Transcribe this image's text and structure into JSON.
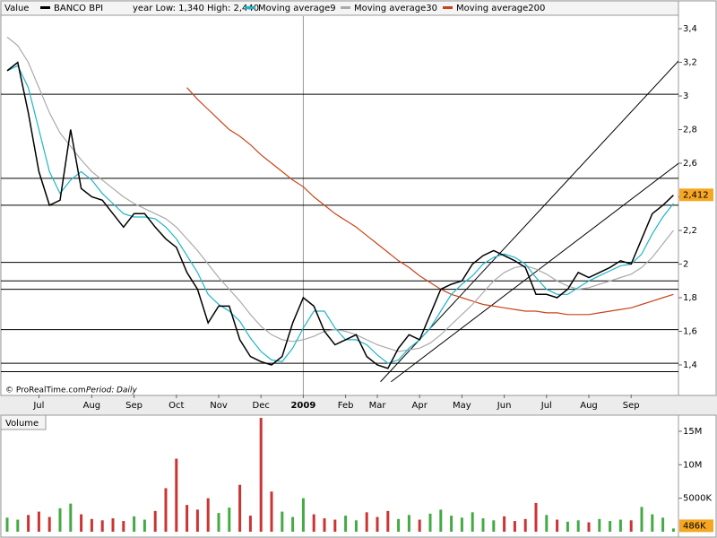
{
  "chart_data": {
    "type": "line",
    "y_label": "Value",
    "subtitle": "year Low: 1,340 High: 2,440",
    "credit": "© ProRealTime.com",
    "period_label": "Period:",
    "period": "Daily",
    "categories": [
      null,
      null,
      null,
      "Jul",
      null,
      null,
      null,
      null,
      "Aug",
      null,
      null,
      null,
      "Sep",
      null,
      null,
      null,
      "Oct",
      null,
      null,
      null,
      "Nov",
      null,
      null,
      null,
      "Dec",
      null,
      null,
      null,
      "2009",
      null,
      null,
      null,
      "Feb",
      null,
      null,
      "Mar",
      null,
      null,
      null,
      "Apr",
      null,
      null,
      null,
      "May",
      null,
      null,
      null,
      "Jun",
      null,
      null,
      null,
      "Jul",
      null,
      null,
      null,
      "Aug",
      null,
      null,
      null,
      "Sep",
      null,
      null,
      null,
      null
    ],
    "series": [
      {
        "name": "BANCO BPI",
        "color": "#000000",
        "values": [
          3.15,
          3.2,
          2.9,
          2.55,
          2.35,
          2.38,
          2.8,
          2.45,
          2.4,
          2.38,
          2.3,
          2.22,
          2.3,
          2.3,
          2.22,
          2.15,
          2.1,
          1.95,
          1.85,
          1.65,
          1.75,
          1.75,
          1.55,
          1.45,
          1.42,
          1.4,
          1.45,
          1.65,
          1.8,
          1.75,
          1.6,
          1.52,
          1.55,
          1.58,
          1.45,
          1.4,
          1.38,
          1.5,
          1.58,
          1.55,
          1.7,
          1.85,
          1.88,
          1.9,
          2.0,
          2.05,
          2.08,
          2.05,
          2.02,
          1.98,
          1.82,
          1.82,
          1.8,
          1.85,
          1.95,
          1.92,
          1.95,
          1.98,
          2.02,
          2.0,
          2.15,
          2.3,
          2.35,
          2.41
        ]
      },
      {
        "name": "Moving average9",
        "color": "#1fb5c8",
        "values": [
          3.15,
          3.18,
          3.05,
          2.8,
          2.55,
          2.42,
          2.5,
          2.55,
          2.5,
          2.42,
          2.36,
          2.3,
          2.28,
          2.28,
          2.27,
          2.22,
          2.15,
          2.05,
          1.95,
          1.82,
          1.76,
          1.72,
          1.66,
          1.56,
          1.48,
          1.43,
          1.42,
          1.5,
          1.62,
          1.72,
          1.72,
          1.62,
          1.55,
          1.55,
          1.52,
          1.46,
          1.41,
          1.43,
          1.5,
          1.55,
          1.62,
          1.72,
          1.82,
          1.88,
          1.93,
          2.0,
          2.04,
          2.06,
          2.04,
          2.0,
          1.92,
          1.85,
          1.82,
          1.82,
          1.86,
          1.9,
          1.93,
          1.96,
          1.99,
          2.0,
          2.06,
          2.18,
          2.28,
          2.36
        ]
      },
      {
        "name": "Moving average30",
        "color": "#aaaaaa",
        "values": [
          3.35,
          3.3,
          3.2,
          3.05,
          2.9,
          2.78,
          2.7,
          2.62,
          2.55,
          2.5,
          2.45,
          2.4,
          2.36,
          2.33,
          2.3,
          2.27,
          2.22,
          2.15,
          2.08,
          2.0,
          1.92,
          1.85,
          1.78,
          1.7,
          1.63,
          1.58,
          1.55,
          1.54,
          1.55,
          1.57,
          1.6,
          1.61,
          1.6,
          1.58,
          1.55,
          1.52,
          1.5,
          1.48,
          1.49,
          1.5,
          1.53,
          1.58,
          1.64,
          1.7,
          1.76,
          1.83,
          1.9,
          1.95,
          1.98,
          1.99,
          1.97,
          1.94,
          1.9,
          1.87,
          1.85,
          1.86,
          1.88,
          1.9,
          1.92,
          1.94,
          1.98,
          2.04,
          2.12,
          2.2
        ]
      },
      {
        "name": "Moving average200",
        "color": "#c8441a",
        "values": [
          null,
          null,
          null,
          null,
          null,
          null,
          null,
          null,
          null,
          null,
          null,
          null,
          null,
          null,
          null,
          null,
          null,
          3.05,
          2.98,
          2.92,
          2.86,
          2.8,
          2.76,
          2.71,
          2.65,
          2.6,
          2.55,
          2.5,
          2.46,
          2.4,
          2.35,
          2.3,
          2.26,
          2.22,
          2.17,
          2.12,
          2.07,
          2.02,
          1.98,
          1.93,
          1.89,
          1.85,
          1.82,
          1.8,
          1.78,
          1.76,
          1.75,
          1.74,
          1.73,
          1.72,
          1.72,
          1.71,
          1.71,
          1.7,
          1.7,
          1.7,
          1.71,
          1.72,
          1.73,
          1.74,
          1.76,
          1.78,
          1.8,
          1.82
        ]
      }
    ],
    "last_value": {
      "value": 2.412,
      "label": "2,412"
    },
    "last_value_color": "#f5a623",
    "ylim": [
      1.224,
      3.475
    ],
    "yticks": [
      {
        "value": 3.4,
        "label": "3,4"
      },
      {
        "value": 3.2,
        "label": "3,2"
      },
      3,
      {
        "value": 2.8,
        "label": "2,8"
      },
      {
        "value": 2.6,
        "label": "2,6"
      },
      {
        "value": 2.4,
        "label": "2,4"
      },
      {
        "value": 2.2,
        "label": "2,2"
      },
      2,
      {
        "value": 1.8,
        "label": "1,8"
      },
      {
        "value": 1.6,
        "label": "1,6"
      },
      {
        "value": 1.4,
        "label": "1,4"
      }
    ],
    "hlines": [
      3.01,
      2.51,
      2.35,
      2.01,
      1.9,
      1.85,
      1.61,
      1.41,
      1.36
    ],
    "trendlines": [
      {
        "from": [
          35.3,
          1.3
        ],
        "to": [
          63.5,
          3.21
        ]
      },
      {
        "from": [
          36.3,
          1.3
        ],
        "to": [
          63.5,
          2.6
        ]
      }
    ],
    "volume": {
      "title": "Volume",
      "up_color": "#44aa44",
      "down_color": "#cc3333",
      "values": [
        2100000,
        1800000,
        2500000,
        3000000,
        2200000,
        3500000,
        4200000,
        2600000,
        1900000,
        1700000,
        2000000,
        1600000,
        2300000,
        1800000,
        3100000,
        6500000,
        10900000,
        4000000,
        3300000,
        5000000,
        2800000,
        3600000,
        7000000,
        2400000,
        17000000,
        6000000,
        3000000,
        2200000,
        5000000,
        2600000,
        2000000,
        1800000,
        2400000,
        1700000,
        2900000,
        2200000,
        3100000,
        1900000,
        2500000,
        1800000,
        2700000,
        3300000,
        2400000,
        2100000,
        2900000,
        2000000,
        1700000,
        2300000,
        1600000,
        1900000,
        4300000,
        2500000,
        1800000,
        1500000,
        1700000,
        1400000,
        1900000,
        1600000,
        1800000,
        1700000,
        3700000,
        2600000,
        2100000,
        486000
      ],
      "last_value": {
        "value": 486000,
        "label": "486K"
      },
      "ylim": [
        0,
        17400000
      ],
      "yticks": [
        {
          "value": 15000000,
          "label": "15M"
        },
        {
          "value": 10000000,
          "label": "10M"
        },
        {
          "value": 5000000,
          "label": "5000K"
        }
      ]
    }
  }
}
